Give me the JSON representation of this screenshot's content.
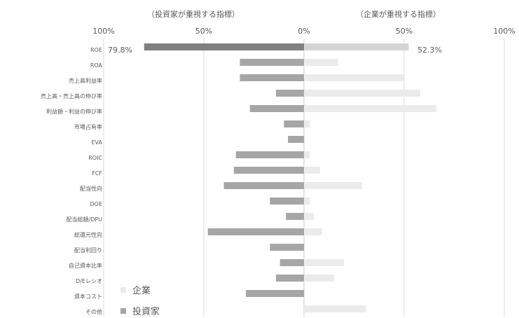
{
  "chart_data": {
    "type": "bar",
    "orientation": "horizontal",
    "layout": "diverging",
    "header_left": "（投資家が重視する指標）",
    "header_right": "（企業が重視する指標）",
    "x_ticks": [
      "100%",
      "50%",
      "0%",
      "50%",
      "100%"
    ],
    "xlim": [
      -100,
      100
    ],
    "categories": [
      "ROE",
      "ROA",
      "売上高利益率",
      "売上高・売上高の伸び率",
      "利益額・利益の伸び率",
      "市場占有率",
      "EVA",
      "ROIC",
      "FCF",
      "配当性向",
      "DOE",
      "配当総額/DPU",
      "総還元性向",
      "配当利回り",
      "自己資本比率",
      "D/Eレシオ",
      "資本コスト",
      "その他"
    ],
    "series": [
      {
        "name": "投資家",
        "color": "#a6a6a6",
        "highlight_color": "#808080",
        "values": [
          79.8,
          32,
          32,
          14,
          27,
          10,
          8,
          34,
          35,
          40,
          17,
          9,
          48,
          17,
          12,
          14,
          29,
          0
        ]
      },
      {
        "name": "企業",
        "color": "#ebebeb",
        "highlight_color": "#d4d4d4",
        "values": [
          52.3,
          17,
          50,
          58,
          66,
          3,
          0,
          3,
          8,
          29,
          3,
          5,
          9,
          0,
          20,
          15,
          0,
          31
        ]
      }
    ],
    "data_labels": {
      "investor_roe": "79.8%",
      "company_roe": "52.3%"
    },
    "grid": true,
    "legend_position": "bottom-left"
  }
}
